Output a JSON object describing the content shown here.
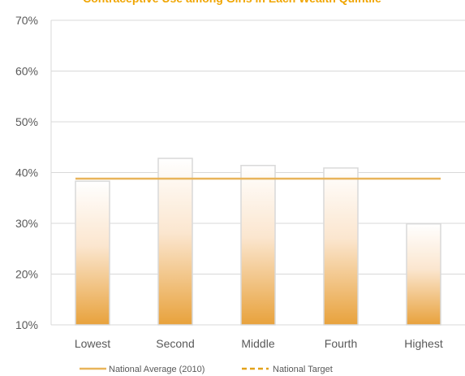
{
  "chart_data": {
    "type": "bar",
    "title": "Contraceptive Use among Girls in Each Wealth Quintile",
    "categories": [
      "Lowest",
      "Second",
      "Middle",
      "Fourth",
      "Highest"
    ],
    "values": [
      38.3,
      42.8,
      41.4,
      40.9,
      29.9
    ],
    "ylim": [
      10,
      70
    ],
    "yticks": [
      10,
      20,
      30,
      40,
      50,
      60,
      70
    ],
    "ytick_labels": [
      "10%",
      "20%",
      "30%",
      "40%",
      "50%",
      "60%",
      "70%"
    ],
    "reference_lines": [
      {
        "name": "National Average (2010)",
        "value": 38.8,
        "style": "solid",
        "color": "#E8B45A"
      },
      {
        "name": "National Target",
        "style": "dashed",
        "color": "#E3A21A"
      }
    ],
    "legend": [
      "National Average (2010)",
      "National Target"
    ],
    "legend_position": "bottom",
    "grid": true,
    "colors": {
      "bar_top": "#FFFFFF",
      "bar_bottom": "#E8A23C",
      "grid": "#D9D9D9",
      "title": "#F0A500"
    }
  }
}
